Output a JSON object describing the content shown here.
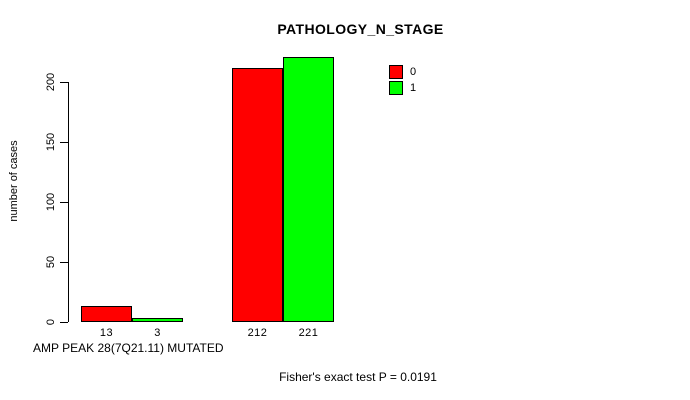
{
  "chart_data": {
    "type": "bar",
    "title": "PATHOLOGY_N_STAGE",
    "xlabel": "AMP PEAK 28(7Q21.11) MUTATED",
    "ylabel": "number of cases",
    "ylim": [
      0,
      200
    ],
    "yticks": [
      0,
      50,
      100,
      150,
      200
    ],
    "grid": false,
    "bar_value_labels_shown": true,
    "series": [
      {
        "name": "0",
        "color": "#FF0000",
        "values": [
          13,
          212
        ]
      },
      {
        "name": "1",
        "color": "#00FF00",
        "values": [
          3,
          221
        ]
      }
    ],
    "legend": {
      "position": "topright",
      "entries": [
        {
          "label": "0",
          "color": "#FF0000"
        },
        {
          "label": "1",
          "color": "#00FF00"
        }
      ]
    },
    "annotation": "Fisher's exact test P = 0.0191"
  }
}
